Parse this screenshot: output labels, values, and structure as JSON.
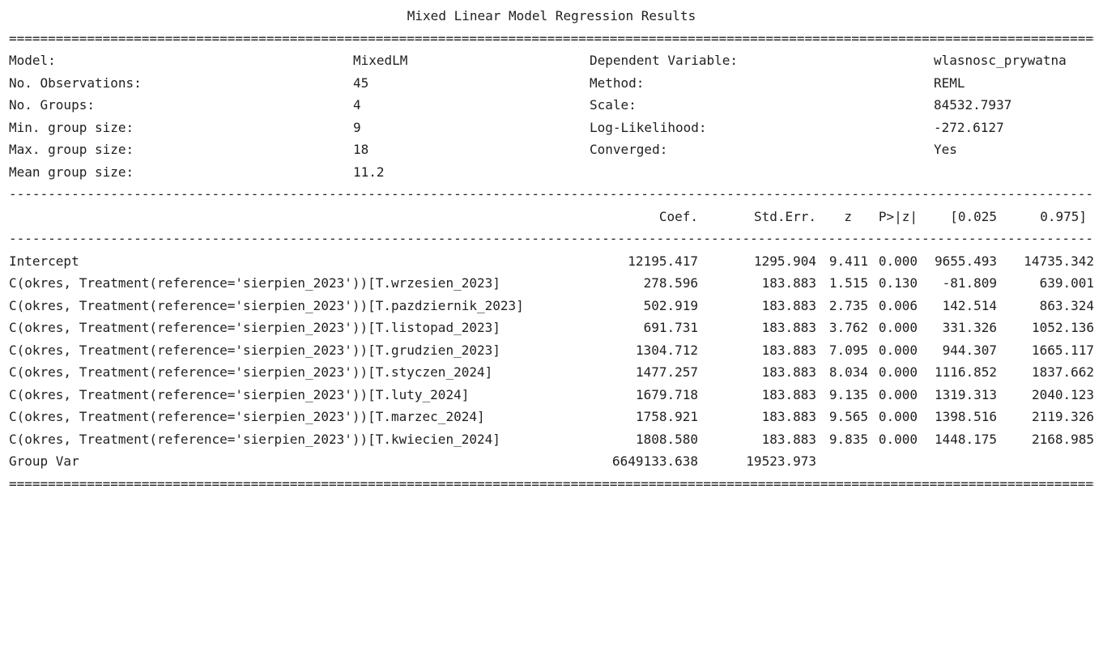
{
  "title": "Mixed Linear Model Regression Results",
  "rules": {
    "double": "================================================================================================================================================================",
    "single": "----------------------------------------------------------------------------------------------------------------------------------------------------------------"
  },
  "summary": [
    {
      "label1": "Model:",
      "value1": "MixedLM",
      "label2": "Dependent Variable:",
      "value2": "wlasnosc_prywatna"
    },
    {
      "label1": "No. Observations:",
      "value1": "45",
      "label2": "Method:",
      "value2": "REML"
    },
    {
      "label1": "No. Groups:",
      "value1": "4",
      "label2": "Scale:",
      "value2": "84532.7937"
    },
    {
      "label1": "Min. group size:",
      "value1": "9",
      "label2": "Log-Likelihood:",
      "value2": "-272.6127"
    },
    {
      "label1": "Max. group size:",
      "value1": "18",
      "label2": "Converged:",
      "value2": "Yes"
    },
    {
      "label1": "Mean group size:",
      "value1": "11.2",
      "label2": "",
      "value2": ""
    }
  ],
  "headers": {
    "coef": "Coef.",
    "stderr": "Std.Err.",
    "z": "z",
    "p": "P>|z|",
    "ci_low": "[0.025",
    "ci_high": "0.975]"
  },
  "rows": [
    {
      "name": "Intercept",
      "coef": "12195.417",
      "stderr": "1295.904",
      "z": "9.411",
      "p": "0.000",
      "ci_low": "9655.493",
      "ci_high": "14735.342"
    },
    {
      "name": "C(okres, Treatment(reference='sierpien_2023'))[T.wrzesien_2023]",
      "coef": "278.596",
      "stderr": "183.883",
      "z": "1.515",
      "p": "0.130",
      "ci_low": "-81.809",
      "ci_high": "639.001"
    },
    {
      "name": "C(okres, Treatment(reference='sierpien_2023'))[T.pazdziernik_2023]",
      "coef": "502.919",
      "stderr": "183.883",
      "z": "2.735",
      "p": "0.006",
      "ci_low": "142.514",
      "ci_high": "863.324"
    },
    {
      "name": "C(okres, Treatment(reference='sierpien_2023'))[T.listopad_2023]",
      "coef": "691.731",
      "stderr": "183.883",
      "z": "3.762",
      "p": "0.000",
      "ci_low": "331.326",
      "ci_high": "1052.136"
    },
    {
      "name": "C(okres, Treatment(reference='sierpien_2023'))[T.grudzien_2023]",
      "coef": "1304.712",
      "stderr": "183.883",
      "z": "7.095",
      "p": "0.000",
      "ci_low": "944.307",
      "ci_high": "1665.117"
    },
    {
      "name": "C(okres, Treatment(reference='sierpien_2023'))[T.styczen_2024]",
      "coef": "1477.257",
      "stderr": "183.883",
      "z": "8.034",
      "p": "0.000",
      "ci_low": "1116.852",
      "ci_high": "1837.662"
    },
    {
      "name": "C(okres, Treatment(reference='sierpien_2023'))[T.luty_2024]",
      "coef": "1679.718",
      "stderr": "183.883",
      "z": "9.135",
      "p": "0.000",
      "ci_low": "1319.313",
      "ci_high": "2040.123"
    },
    {
      "name": "C(okres, Treatment(reference='sierpien_2023'))[T.marzec_2024]",
      "coef": "1758.921",
      "stderr": "183.883",
      "z": "9.565",
      "p": "0.000",
      "ci_low": "1398.516",
      "ci_high": "2119.326"
    },
    {
      "name": "C(okres, Treatment(reference='sierpien_2023'))[T.kwiecien_2024]",
      "coef": "1808.580",
      "stderr": "183.883",
      "z": "9.835",
      "p": "0.000",
      "ci_low": "1448.175",
      "ci_high": "2168.985"
    },
    {
      "name": "Group Var",
      "coef": "6649133.638",
      "stderr": "19523.973",
      "z": "",
      "p": "",
      "ci_low": "",
      "ci_high": ""
    }
  ]
}
